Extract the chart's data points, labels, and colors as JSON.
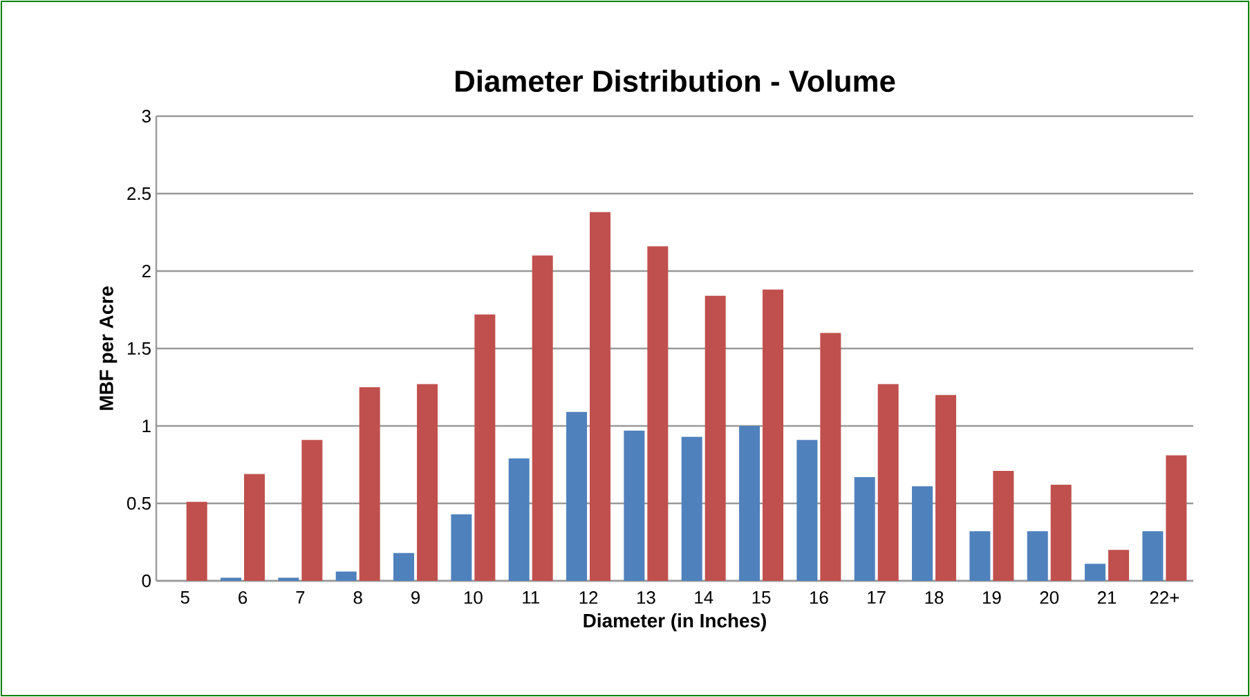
{
  "chart_data": {
    "type": "bar",
    "title": "Diameter Distribution - Volume",
    "xlabel": "Diameter (in Inches)",
    "ylabel": "MBF per Acre",
    "categories": [
      "5",
      "6",
      "7",
      "8",
      "9",
      "10",
      "11",
      "12",
      "13",
      "14",
      "15",
      "16",
      "17",
      "18",
      "19",
      "20",
      "21",
      "22+"
    ],
    "series": [
      {
        "color": "#4f81bd",
        "values": [
          0,
          0.02,
          0.02,
          0.06,
          0.18,
          0.43,
          0.79,
          1.09,
          0.97,
          0.93,
          1.0,
          0.91,
          0.67,
          0.61,
          0.32,
          0.32,
          0.11,
          0.32
        ]
      },
      {
        "color": "#c0504d",
        "values": [
          0.51,
          0.69,
          0.91,
          1.25,
          1.27,
          1.72,
          2.1,
          2.38,
          2.16,
          1.84,
          1.88,
          1.6,
          1.27,
          1.2,
          0.71,
          0.62,
          0.2,
          0.81
        ]
      }
    ],
    "ylim": [
      0,
      3
    ],
    "yticks": [
      0,
      0.5,
      1,
      1.5,
      2,
      2.5,
      3
    ],
    "grid": "y"
  }
}
